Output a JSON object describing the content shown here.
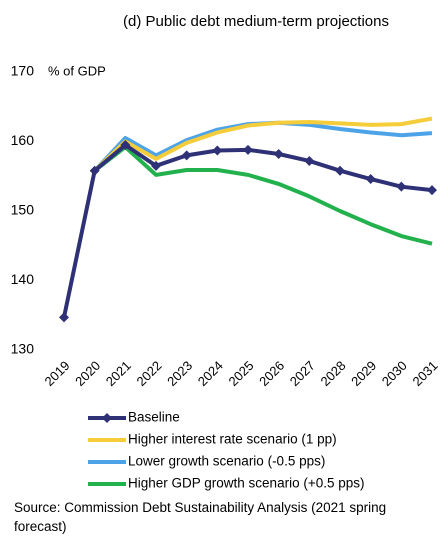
{
  "chart_data": {
    "type": "line",
    "title": "(d) Public debt medium-term projections",
    "y_label": "% of GDP",
    "categories": [
      "2019",
      "2020",
      "2021",
      "2022",
      "2023",
      "2024",
      "2025",
      "2026",
      "2027",
      "2028",
      "2029",
      "2030",
      "2031"
    ],
    "series": [
      {
        "name": "Baseline",
        "color": "#2e3175",
        "marker": "diamond",
        "values": [
          134.7,
          155.8,
          159.5,
          156.5,
          158.0,
          158.7,
          158.8,
          158.2,
          157.2,
          155.8,
          154.6,
          153.5,
          153.0
        ]
      },
      {
        "name": "Higher interest rate scenario (1 pp)",
        "color": "#f5cc3a",
        "values": [
          null,
          155.8,
          160.0,
          157.5,
          159.8,
          161.3,
          162.3,
          162.7,
          162.8,
          162.6,
          162.4,
          162.5,
          163.3
        ]
      },
      {
        "name": "Lower growth scenario (-0.5 pps)",
        "color": "#4da3e8",
        "values": [
          null,
          155.8,
          160.5,
          158.0,
          160.2,
          161.7,
          162.5,
          162.7,
          162.4,
          161.8,
          161.3,
          160.9,
          161.2
        ]
      },
      {
        "name": "Higher GDP growth scenario (+0.5 pps)",
        "color": "#22b14c",
        "values": [
          null,
          155.8,
          159.2,
          155.2,
          155.9,
          155.9,
          155.2,
          153.9,
          152.1,
          150.0,
          148.1,
          146.4,
          145.3
        ]
      }
    ],
    "ylim": [
      130,
      170
    ],
    "yticks": [
      130,
      140,
      150,
      160,
      170
    ],
    "grid": false,
    "source": "Source: Commission Debt Sustainability Analysis (2021 spring forecast)"
  }
}
